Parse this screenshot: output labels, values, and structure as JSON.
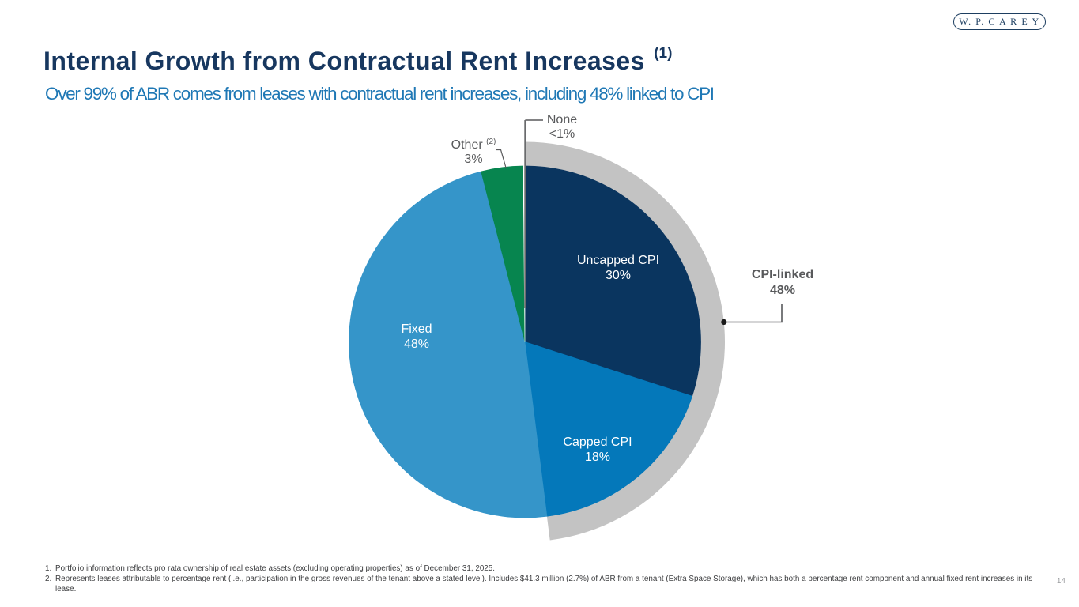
{
  "logo": {
    "text": "W. P. C A R E Y"
  },
  "header": {
    "title": "Internal Growth from Contractual Rent Increases",
    "title_superscript": "(1)",
    "subtitle": "Over 99% of ABR comes from leases with contractual rent increases, including 48% linked to CPI"
  },
  "chart_data": {
    "type": "pie",
    "start_angle_deg": 0,
    "direction": "clockwise",
    "slices": [
      {
        "label": "Uncapped CPI",
        "value_label": "30%",
        "value": 30,
        "sweep_pct": 30,
        "color": "#0a355f",
        "label_color": "#ffffff"
      },
      {
        "label": "Capped CPI",
        "value_label": "18%",
        "value": 18,
        "sweep_pct": 18,
        "color": "#0478ba",
        "label_color": "#ffffff"
      },
      {
        "label": "Fixed",
        "value_label": "48%",
        "value": 48,
        "sweep_pct": 48,
        "color": "#3595c9",
        "label_color": "#ffffff"
      },
      {
        "label": "Other",
        "value_label": "3%",
        "value": 3,
        "sweep_pct": 3.85,
        "color": "#07854f",
        "label_color": "#58595b",
        "superscript": "(2)"
      },
      {
        "label": "None",
        "value_label": "<1%",
        "value": 1,
        "sweep_pct": 0.15,
        "color": "#ffffff",
        "label_color": "#58595b"
      }
    ],
    "callout": {
      "label": "CPI-linked",
      "value_label": "48%",
      "covers_pct": 48,
      "arc_color": "#c3c3c3"
    },
    "leader_line_color": "#58595b",
    "none_divider_color": "#6a6b6d",
    "dot_color": "#1a1a1a"
  },
  "footnotes": [
    {
      "num": "1.",
      "text": "Portfolio information reflects pro rata ownership of real estate assets (excluding operating properties) as of December 31, 2025."
    },
    {
      "num": "2.",
      "text": "Represents leases attributable to percentage rent (i.e., participation in the gross revenues of the tenant above a stated level). Includes $41.3 million (2.7%) of ABR from a tenant (Extra Space Storage), which has both a percentage rent component and annual fixed rent increases in its lease."
    }
  ],
  "page_number": "14"
}
